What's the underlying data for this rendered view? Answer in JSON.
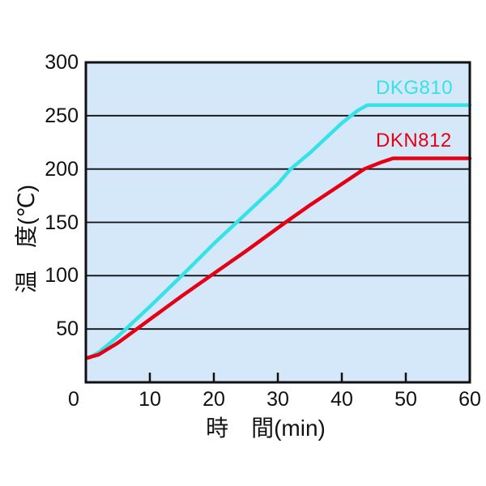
{
  "chart_data": {
    "type": "line",
    "title": "",
    "xlabel": "時　間(min)",
    "ylabel": "温　度(℃)",
    "xlim": [
      0,
      60
    ],
    "ylim": [
      0,
      300
    ],
    "xticks": [
      0,
      10,
      20,
      30,
      40,
      50,
      60
    ],
    "yticks": [
      50,
      100,
      150,
      200,
      250,
      300
    ],
    "grid": "horizontal-only",
    "legend_position": "labels-inside-plot",
    "plot_bg_color": "#d5e8fa",
    "axis_color": "#111111",
    "series": [
      {
        "name": "DKG810",
        "color": "#35e2e8",
        "plateau_temp_c": 260,
        "points": [
          [
            0.5,
            23
          ],
          [
            2,
            28
          ],
          [
            5,
            43
          ],
          [
            10,
            71
          ],
          [
            15,
            100
          ],
          [
            20,
            130
          ],
          [
            25,
            158
          ],
          [
            30,
            186
          ],
          [
            32,
            200
          ],
          [
            35,
            215
          ],
          [
            40,
            243
          ],
          [
            42.5,
            255
          ],
          [
            44,
            260
          ],
          [
            60,
            260
          ]
        ]
      },
      {
        "name": "DKN812",
        "color": "#e60014",
        "plateau_temp_c": 210,
        "points": [
          [
            0.3,
            23
          ],
          [
            2,
            26
          ],
          [
            5,
            37
          ],
          [
            10,
            59
          ],
          [
            15,
            81
          ],
          [
            20,
            102
          ],
          [
            25,
            123
          ],
          [
            31.2,
            150
          ],
          [
            35,
            166
          ],
          [
            40,
            186
          ],
          [
            43.5,
            200
          ],
          [
            46,
            206
          ],
          [
            48,
            210
          ],
          [
            60,
            210
          ]
        ]
      }
    ]
  }
}
